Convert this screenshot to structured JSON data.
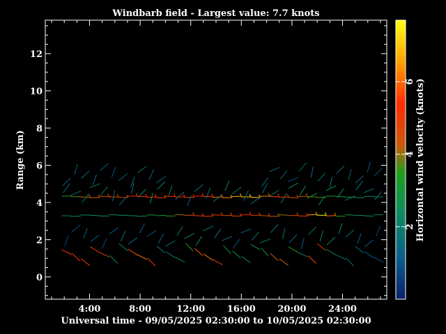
{
  "chart_data": {
    "type": "scatter",
    "title": "Windbarb field - Largest value:  7.7 knots",
    "xlabel": "Universal time - 09/05/2025 02:30:00 to 10/05/2025 02:30:00",
    "ylabel": "Range (km)",
    "colorbar_label": "Horizontal wind velocity (knots)",
    "x_ticks": [
      "4:00",
      "8:00",
      "12:00",
      "16:00",
      "20:00",
      "24:00"
    ],
    "x_tick_hours": [
      4,
      8,
      12,
      16,
      20,
      24
    ],
    "xlim": [
      0.5,
      27.5
    ],
    "y_ticks": [
      0,
      2,
      4,
      6,
      8,
      10,
      12
    ],
    "ylim": [
      -1.2,
      13.8
    ],
    "colorbar_ticks": [
      2,
      4,
      6
    ],
    "colorbar_range": [
      0,
      7.7
    ],
    "grid": false,
    "colorbar_position": "right",
    "barb_rows": [
      {
        "range_km": 4.3,
        "speeds": [
          3.5,
          3.8,
          4.2,
          4.4,
          4.6,
          4.8,
          5.0,
          5.1,
          5.3,
          5.5,
          5.6,
          5.4,
          5.2,
          5.0,
          5.3,
          5.6,
          6.0,
          6.4,
          6.8,
          7.2,
          7.0,
          6.2,
          5.6,
          5.0,
          4.6,
          4.2,
          3.8,
          3.5,
          3.2,
          3.0,
          2.8,
          2.5,
          2.2,
          2.0
        ]
      },
      {
        "range_km": 3.3,
        "speeds": [
          2.0,
          2.2,
          2.4,
          2.5,
          2.3,
          2.2,
          2.4,
          2.6,
          2.8,
          3.0,
          3.2,
          3.5,
          4.0,
          4.5,
          5.0,
          5.2,
          4.8,
          4.6,
          5.0,
          5.4,
          5.0,
          4.6,
          4.2,
          4.0,
          4.6,
          5.2,
          6.6,
          7.7,
          6.0,
          3.5,
          3.0,
          2.5,
          2.2,
          2.0
        ]
      },
      {
        "range_km": 4.5,
        "speeds": [
          1.5,
          1.6,
          1.8,
          2.0,
          1.8,
          1.7,
          1.6,
          1.9,
          2.2,
          2.4,
          2.0,
          1.8,
          1.6,
          1.4,
          1.5,
          1.7,
          1.9,
          2.1,
          1.8,
          1.6,
          1.5,
          1.7,
          1.9,
          2.2,
          2.5,
          2.8,
          3.0,
          2.6,
          2.4,
          2.2,
          2.0,
          1.8,
          1.6,
          1.5
        ]
      },
      {
        "range_km": 2.2,
        "speeds": [
          0.8,
          1.0,
          1.2,
          1.0,
          0.9,
          1.2,
          1.5,
          1.4,
          1.2,
          1.0,
          1.3,
          1.6,
          1.8,
          2.0,
          2.2,
          1.8,
          1.5,
          1.3,
          1.1,
          1.4,
          1.8,
          2.2,
          2.0,
          1.7,
          1.5,
          1.3,
          1.6,
          2.0,
          2.3,
          2.0,
          1.6,
          1.2,
          1.0,
          0.8
        ]
      },
      {
        "range_km": 1.2,
        "speeds": [
          5.0,
          5.4,
          5.6,
          5.2,
          4.8,
          2.5,
          2.2,
          5.8,
          6.2,
          5.5,
          2.0,
          1.8,
          2.2,
          3.5,
          5.8,
          6.2,
          5.0,
          3.0,
          2.6,
          2.2,
          2.8,
          2.4,
          4.5,
          4.2,
          3.5,
          2.0,
          5.6,
          5.0,
          2.2,
          2.0,
          1.6,
          1.4,
          1.2,
          1.0
        ]
      },
      {
        "range_km": 5.5,
        "speeds": [
          1.2,
          1.4,
          1.6,
          1.3,
          1.1,
          1.0,
          1.2,
          1.5,
          1.8,
          1.6,
          1.4,
          0,
          0,
          0,
          0,
          0,
          0,
          0,
          0,
          0,
          0,
          1.4,
          1.6,
          1.2,
          1.0,
          1.3,
          1.5,
          1.7,
          1.9,
          1.6,
          1.3,
          1.1,
          1.0,
          0.9
        ]
      }
    ]
  }
}
